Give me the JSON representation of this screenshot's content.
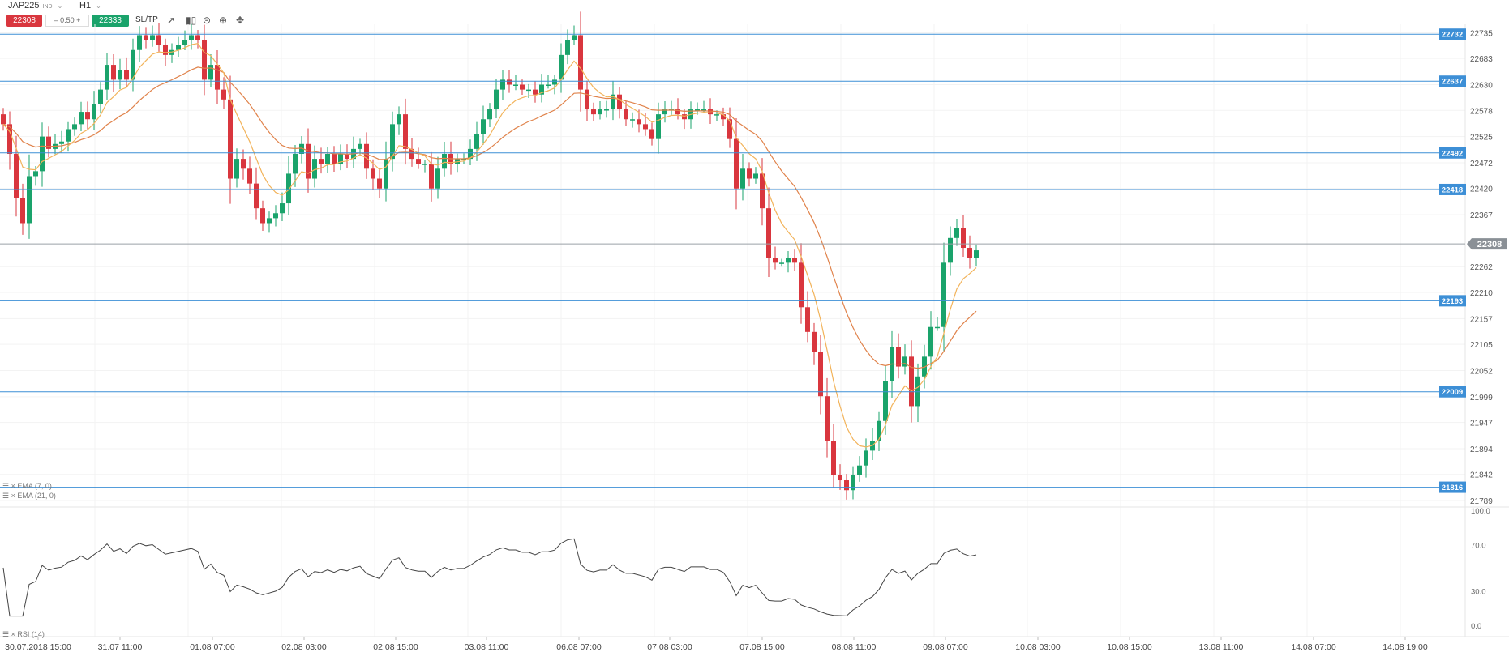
{
  "toolbar": {
    "symbol": "JAP225",
    "symbol_tag": "IND",
    "timeframe": "H1",
    "sell_price": "22308",
    "spread": "0.50",
    "buy_price": "22333",
    "sltp_label": "SL/TP",
    "tools": [
      "line-chart-icon",
      "candles-icon",
      "zoom-out-icon",
      "zoom-in-icon",
      "move-icon"
    ]
  },
  "colors": {
    "bull": "#1aa36b",
    "bear": "#d9363e",
    "ema7": "#f2b35a",
    "ema21": "#e0824a",
    "level": "#3d8fd6",
    "current": "#9aa0a6",
    "rsi": "#444444"
  },
  "indicators": {
    "ema7_label": "EMA (7, 0)",
    "ema21_label": "EMA (21, 0)",
    "rsi_label": "RSI (14)"
  },
  "chart_data": [
    {
      "type": "candlestick",
      "price_axis": [
        "22735",
        "22683",
        "22630",
        "22578",
        "22525",
        "22472",
        "22420",
        "22367",
        "22262",
        "22210",
        "22157",
        "22105",
        "22052",
        "21999",
        "21947",
        "21894",
        "21842",
        "21789"
      ],
      "ylim": [
        21776,
        22752
      ],
      "levels": [
        "22732",
        "22637",
        "22492",
        "22418",
        "22193",
        "22009",
        "21816"
      ],
      "current_price": "22308",
      "closes": [
        22550,
        22490,
        22400,
        22350,
        22445,
        22455,
        22525,
        22500,
        22510,
        22515,
        22540,
        22550,
        22575,
        22560,
        22590,
        22620,
        22670,
        22640,
        22660,
        22640,
        22700,
        22730,
        22720,
        22730,
        22710,
        22690,
        22700,
        22710,
        22720,
        22730,
        22720,
        22640,
        22670,
        22620,
        22600,
        22440,
        22480,
        22460,
        22430,
        22380,
        22350,
        22360,
        22370,
        22390,
        22450,
        22490,
        22510,
        22440,
        22480,
        22470,
        22490,
        22470,
        22490,
        22480,
        22500,
        22510,
        22460,
        22440,
        22420,
        22480,
        22550,
        22570,
        22500,
        22480,
        22470,
        22470,
        22420,
        22460,
        22490,
        22470,
        22480,
        22480,
        22500,
        22530,
        22560,
        22580,
        22620,
        22640,
        22630,
        22630,
        22620,
        22620,
        22610,
        22630,
        22630,
        22640,
        22690,
        22720,
        22730,
        22620,
        22580,
        22570,
        22580,
        22580,
        22610,
        22580,
        22560,
        22560,
        22550,
        22540,
        22520,
        22570,
        22580,
        22580,
        22570,
        22560,
        22580,
        22580,
        22580,
        22570,
        22570,
        22560,
        22520,
        22420,
        22460,
        22440,
        22450,
        22380,
        22280,
        22270,
        22270,
        22280,
        22270,
        22180,
        22130,
        22090,
        22000,
        21910,
        21840,
        21830,
        21810,
        21840,
        21860,
        21890,
        21910,
        21950,
        22030,
        22100,
        22060,
        22080,
        21980,
        22040,
        22080,
        22140,
        22140,
        22270,
        22320,
        22340,
        22300,
        22280,
        22295
      ]
    },
    {
      "type": "line",
      "name": "RSI (14)",
      "ylim": [
        0,
        100
      ],
      "y_ticks": [
        "100.0",
        "70.0",
        "30.0",
        "0.0"
      ],
      "x_ticks": [
        "30.07.2018 15:00",
        "31.07 11:00",
        "01.08 07:00",
        "02.08 03:00",
        "02.08 15:00",
        "03.08 11:00",
        "06.08 07:00",
        "07.08 03:00",
        "07.08 15:00",
        "08.08 11:00",
        "09.08 07:00",
        "10.08 03:00",
        "10.08 15:00",
        "13.08 11:00",
        "14.08 07:00",
        "14.08 19:00"
      ]
    }
  ]
}
